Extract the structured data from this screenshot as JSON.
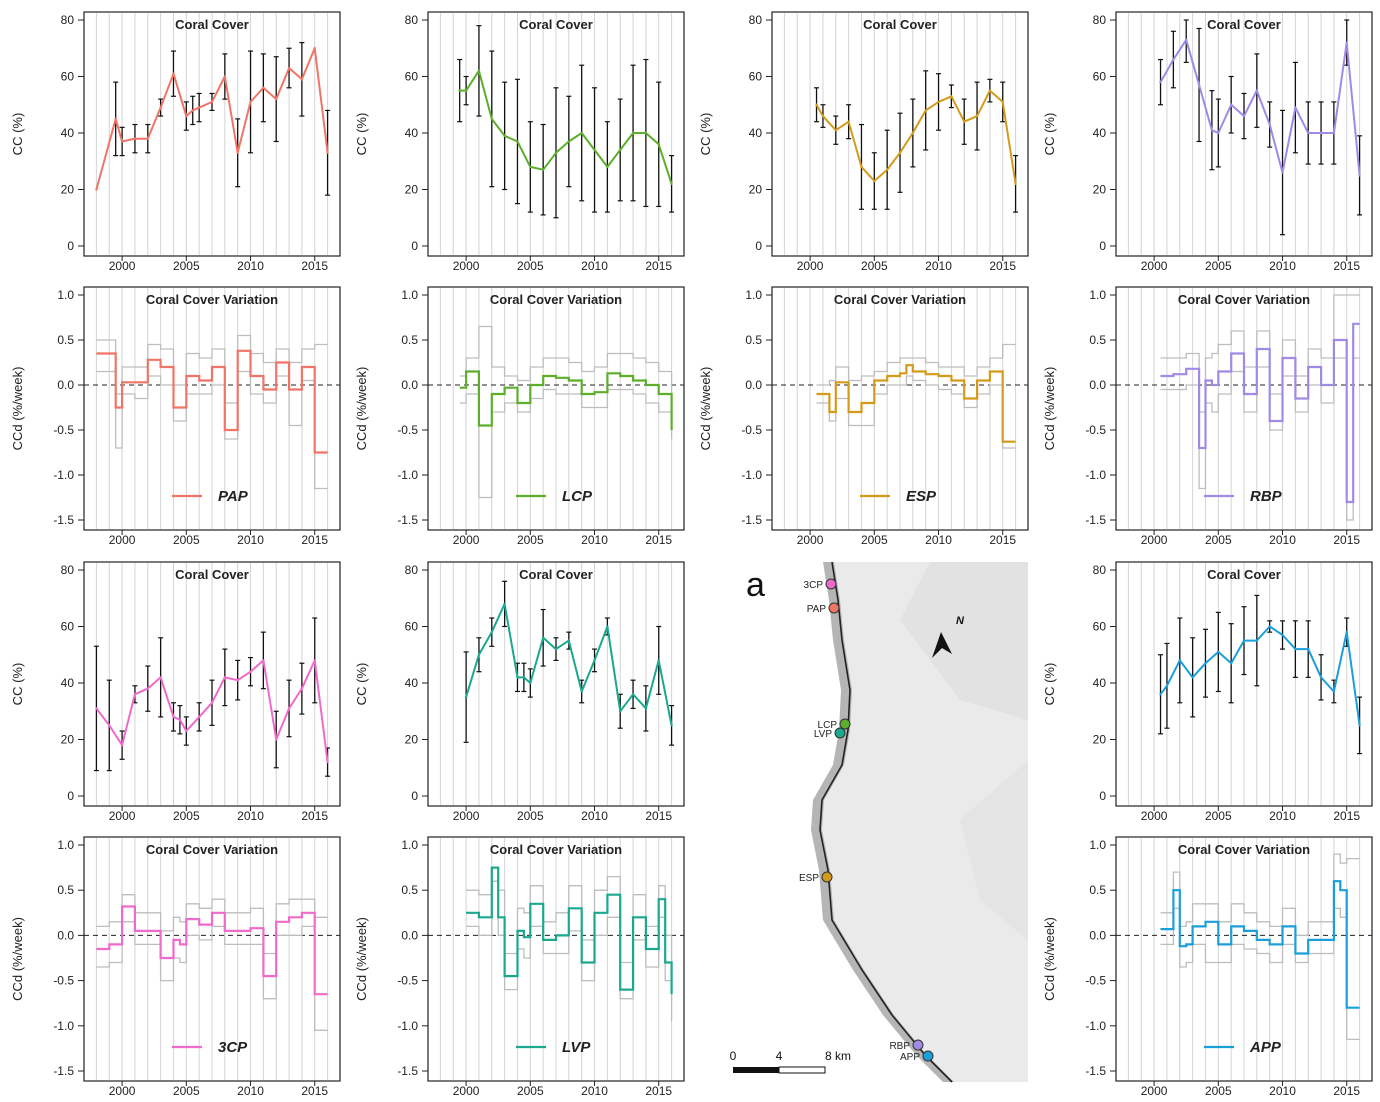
{
  "colors": {
    "PAP": "#F07566",
    "LCP": "#5DAE2B",
    "ESP": "#D49B1A",
    "RBP": "#A08AE6",
    "3CP": "#F06ACB",
    "LVP": "#1BA88E",
    "APP": "#1A9FDB",
    "grid": "#d4d4d4",
    "range": "#bdbdbd"
  },
  "labels": {
    "cover_title": "Coral Cover",
    "variation_title": "Coral Cover Variation",
    "cover_ylabel": "CC (%)",
    "variation_ylabel": "CCd (%/week)"
  },
  "map": {
    "panel_label": "a",
    "north": "N",
    "scale_labels": [
      "0",
      "4",
      "8 km"
    ],
    "sites": [
      "3CP",
      "PAP",
      "LCP",
      "LVP",
      "ESP",
      "RBP",
      "APP"
    ]
  },
  "chart_data": [
    {
      "type": "line",
      "site": "PAP",
      "title": "Coral Cover",
      "ylabel": "CC (%)",
      "xlim": [
        1997.5,
        2016.5
      ],
      "ylim": [
        0,
        80
      ],
      "xticks": [
        2000,
        2005,
        2010,
        2015
      ],
      "yticks": [
        0,
        20,
        40,
        60,
        80
      ],
      "x": [
        1998,
        1999.5,
        2000,
        2001,
        2002,
        2003,
        2004,
        2005,
        2005.5,
        2006,
        2007,
        2008,
        2009,
        2010,
        2011,
        2012,
        2013,
        2014,
        2015,
        2016
      ],
      "y": [
        20,
        45,
        37,
        38,
        38,
        49,
        61,
        46,
        48,
        49,
        51,
        60,
        33,
        51,
        56,
        52,
        63,
        59,
        70,
        33
      ],
      "err": [
        0,
        13,
        5,
        5,
        5,
        3,
        8,
        5,
        5,
        5,
        3,
        8,
        12,
        18,
        12,
        15,
        7,
        13,
        0,
        15
      ]
    },
    {
      "type": "line",
      "site": "LCP",
      "title": "Coral Cover",
      "ylabel": "CC (%)",
      "xlim": [
        1997.5,
        2016.5
      ],
      "ylim": [
        0,
        80
      ],
      "xticks": [
        2000,
        2005,
        2010,
        2015
      ],
      "yticks": [
        0,
        20,
        40,
        60,
        80
      ],
      "x": [
        1999.5,
        2000,
        2001,
        2002,
        2003,
        2004,
        2005,
        2006,
        2007,
        2008,
        2009,
        2010,
        2011,
        2012,
        2013,
        2014,
        2015,
        2016
      ],
      "y": [
        55,
        55,
        62,
        45,
        39,
        37,
        28,
        27,
        33,
        37,
        40,
        34,
        28,
        34,
        40,
        40,
        36,
        22
      ],
      "err": [
        11,
        5,
        16,
        24,
        19,
        22,
        16,
        16,
        23,
        16,
        24,
        22,
        16,
        18,
        24,
        26,
        22,
        10
      ]
    },
    {
      "type": "line",
      "site": "ESP",
      "title": "Coral Cover",
      "ylabel": "CC (%)",
      "xlim": [
        1997.5,
        2016.5
      ],
      "ylim": [
        0,
        80
      ],
      "xticks": [
        2000,
        2005,
        2010,
        2015
      ],
      "yticks": [
        0,
        20,
        40,
        60,
        80
      ],
      "x": [
        2000.5,
        2001,
        2002,
        2003,
        2004,
        2005,
        2006,
        2007,
        2008,
        2009,
        2010,
        2011,
        2012,
        2013,
        2014,
        2015,
        2016
      ],
      "y": [
        50,
        46,
        41,
        44,
        28,
        23,
        27,
        33,
        40,
        48,
        51,
        53,
        44,
        46,
        55,
        51,
        22
      ],
      "err": [
        6,
        4,
        5,
        6,
        15,
        10,
        14,
        14,
        12,
        14,
        10,
        4,
        8,
        12,
        4,
        7,
        10
      ]
    },
    {
      "type": "line",
      "site": "RBP",
      "title": "Coral Cover",
      "ylabel": "CC (%)",
      "xlim": [
        1997.5,
        2016.5
      ],
      "ylim": [
        0,
        80
      ],
      "xticks": [
        2000,
        2005,
        2010,
        2015
      ],
      "yticks": [
        0,
        20,
        40,
        60,
        80
      ],
      "x": [
        2000.5,
        2001.5,
        2002.5,
        2003.5,
        2004.5,
        2005,
        2006,
        2007,
        2008,
        2009,
        2010,
        2011,
        2012,
        2013,
        2014,
        2015,
        2016
      ],
      "y": [
        58,
        66,
        73,
        57,
        41,
        40,
        50,
        46,
        55,
        43,
        26,
        49,
        40,
        40,
        40,
        72,
        25
      ],
      "err": [
        8,
        10,
        8,
        20,
        14,
        12,
        10,
        8,
        13,
        8,
        22,
        16,
        11,
        11,
        11,
        8,
        14
      ]
    },
    {
      "type": "step",
      "site": "PAP",
      "title": "Coral Cover Variation",
      "ylabel": "CCd (%/week)",
      "legend": "PAP",
      "xlim": [
        1997.5,
        2016.5
      ],
      "ylim": [
        -1.5,
        1.0
      ],
      "xticks": [
        2000,
        2005,
        2010,
        2015
      ],
      "yticks": [
        -1.5,
        -1.0,
        -0.5,
        0.0,
        0.5,
        1.0
      ],
      "breaks": [
        1998,
        1999.5,
        2000,
        2001,
        2002,
        2003,
        2004,
        2005,
        2006,
        2007,
        2008,
        2009,
        2010,
        2011,
        2012,
        2013,
        2014,
        2015,
        2016
      ],
      "values": [
        0.35,
        -0.25,
        0.03,
        0.03,
        0.28,
        0.2,
        -0.25,
        0.1,
        0.05,
        0.2,
        -0.5,
        0.38,
        0.1,
        -0.05,
        0.25,
        -0.05,
        0.2,
        -0.75
      ],
      "upper": [
        0.5,
        -0.1,
        0.2,
        0.2,
        0.45,
        0.4,
        0.0,
        0.35,
        0.3,
        0.4,
        -0.2,
        0.55,
        0.35,
        0.25,
        0.4,
        0.25,
        0.4,
        0.45
      ],
      "lower": [
        0.15,
        -0.7,
        -0.1,
        -0.15,
        0.1,
        0.0,
        -0.4,
        -0.1,
        -0.1,
        0.0,
        -0.6,
        0.15,
        -0.1,
        -0.2,
        0.1,
        -0.45,
        0.05,
        -1.15
      ]
    },
    {
      "type": "step",
      "site": "LCP",
      "title": "Coral Cover Variation",
      "ylabel": "CCd (%/week)",
      "legend": "LCP",
      "xlim": [
        1997.5,
        2016.5
      ],
      "ylim": [
        -1.5,
        1.0
      ],
      "xticks": [
        2000,
        2005,
        2010,
        2015
      ],
      "yticks": [
        -1.5,
        -1.0,
        -0.5,
        0.0,
        0.5,
        1.0
      ],
      "breaks": [
        1999.5,
        2000,
        2001,
        2002,
        2003,
        2004,
        2005,
        2006,
        2007,
        2008,
        2009,
        2010,
        2011,
        2012,
        2013,
        2014,
        2015,
        2016
      ],
      "values": [
        -0.03,
        0.15,
        -0.45,
        -0.1,
        -0.03,
        -0.2,
        0.0,
        0.1,
        0.08,
        0.05,
        -0.1,
        -0.08,
        0.13,
        0.1,
        0.05,
        0.0,
        -0.1,
        -0.5
      ],
      "upper": [
        0.1,
        0.3,
        0.65,
        0.2,
        0.1,
        0.05,
        0.2,
        0.3,
        0.3,
        0.25,
        0.15,
        0.2,
        0.35,
        0.35,
        0.3,
        0.25,
        0.15,
        -0.2
      ],
      "lower": [
        -0.2,
        -0.1,
        -1.25,
        -0.3,
        -0.2,
        -0.3,
        -0.15,
        -0.05,
        -0.1,
        -0.1,
        -0.25,
        -0.25,
        -0.05,
        -0.05,
        -0.1,
        -0.2,
        -0.3,
        -0.6
      ]
    },
    {
      "type": "step",
      "site": "ESP",
      "title": "Coral Cover Variation",
      "ylabel": "CCd (%/week)",
      "legend": "ESP",
      "xlim": [
        1997.5,
        2016.5
      ],
      "ylim": [
        -1.5,
        1.0
      ],
      "xticks": [
        2000,
        2005,
        2010,
        2015
      ],
      "yticks": [
        -1.5,
        -1.0,
        -0.5,
        0.0,
        0.5,
        1.0
      ],
      "breaks": [
        2000.5,
        2001.5,
        2002,
        2003,
        2004,
        2005,
        2006,
        2007,
        2007.5,
        2008,
        2009,
        2010,
        2011,
        2012,
        2013,
        2014,
        2015,
        2016
      ],
      "values": [
        -0.1,
        -0.3,
        0.03,
        -0.3,
        -0.2,
        0.05,
        0.1,
        0.13,
        0.22,
        0.15,
        0.12,
        0.1,
        0.05,
        -0.15,
        0.05,
        0.15,
        -0.63
      ],
      "upper": [
        0.0,
        0.05,
        0.2,
        0.05,
        0.1,
        0.15,
        0.25,
        0.3,
        0.3,
        0.3,
        0.25,
        0.2,
        0.2,
        0.1,
        0.2,
        0.3,
        0.45
      ],
      "lower": [
        -0.2,
        -0.4,
        -0.15,
        -0.45,
        -0.45,
        -0.1,
        0.0,
        0.0,
        0.1,
        0.05,
        0.0,
        -0.05,
        -0.1,
        -0.25,
        -0.1,
        0.0,
        -0.7
      ]
    },
    {
      "type": "step",
      "site": "RBP",
      "title": "Coral Cover Variation",
      "ylabel": "CCd (%/week)",
      "legend": "RBP",
      "xlim": [
        1997.5,
        2016.5
      ],
      "ylim": [
        -1.5,
        1.0
      ],
      "xticks": [
        2000,
        2005,
        2010,
        2015
      ],
      "yticks": [
        -1.5,
        -1.0,
        -0.5,
        0.0,
        0.5,
        1.0
      ],
      "breaks": [
        2000.5,
        2001.5,
        2002.5,
        2003.5,
        2004,
        2004.5,
        2005,
        2006,
        2007,
        2008,
        2009,
        2010,
        2011,
        2012,
        2013,
        2014,
        2015,
        2015.5,
        2016
      ],
      "values": [
        0.1,
        0.12,
        0.18,
        -0.7,
        0.05,
        0.0,
        0.15,
        0.35,
        -0.1,
        0.4,
        -0.4,
        0.3,
        -0.15,
        0.2,
        0.0,
        0.5,
        -1.3,
        0.68
      ],
      "upper": [
        0.3,
        0.3,
        0.35,
        -0.3,
        0.3,
        0.35,
        0.45,
        0.6,
        0.2,
        0.6,
        -0.1,
        0.5,
        0.1,
        0.4,
        0.3,
        1.0,
        1.0,
        1.0
      ],
      "lower": [
        -0.05,
        -0.05,
        0.0,
        -1.15,
        -0.2,
        -0.3,
        -0.1,
        0.15,
        -0.3,
        0.2,
        -0.5,
        0.1,
        -0.3,
        0.0,
        -0.2,
        0.3,
        -1.5,
        0.3
      ]
    },
    {
      "type": "line",
      "site": "3CP",
      "title": "Coral Cover",
      "ylabel": "CC (%)",
      "xlim": [
        1997.5,
        2016.5
      ],
      "ylim": [
        0,
        80
      ],
      "xticks": [
        2000,
        2005,
        2010,
        2015
      ],
      "yticks": [
        0,
        20,
        40,
        60,
        80
      ],
      "x": [
        1998,
        1999,
        2000,
        2001,
        2002,
        2003,
        2004,
        2004.5,
        2005,
        2006,
        2007,
        2008,
        2009,
        2010,
        2011,
        2012,
        2013,
        2014,
        2015,
        2016
      ],
      "y": [
        31,
        25,
        18,
        36,
        38,
        42,
        28,
        27,
        23,
        28,
        33,
        42,
        41,
        44,
        48,
        20,
        31,
        38,
        48,
        12
      ],
      "err": [
        22,
        16,
        5,
        3,
        8,
        14,
        5,
        5,
        5,
        5,
        8,
        10,
        7,
        5,
        10,
        10,
        10,
        9,
        15,
        5
      ]
    },
    {
      "type": "line",
      "site": "LVP",
      "title": "Coral Cover",
      "ylabel": "CC (%)",
      "xlim": [
        1997.5,
        2016.5
      ],
      "ylim": [
        0,
        80
      ],
      "xticks": [
        2000,
        2005,
        2010,
        2015
      ],
      "yticks": [
        0,
        20,
        40,
        60,
        80
      ],
      "x": [
        2000,
        2001,
        2002,
        2003,
        2004,
        2004.5,
        2005,
        2006,
        2007,
        2008,
        2009,
        2010,
        2011,
        2012,
        2013,
        2014,
        2015,
        2016
      ],
      "y": [
        35,
        50,
        58,
        68,
        42,
        42,
        40,
        56,
        52,
        55,
        37,
        48,
        60,
        30,
        36,
        31,
        48,
        25
      ],
      "err": [
        16,
        6,
        5,
        8,
        5,
        5,
        5,
        10,
        4,
        3,
        4,
        4,
        3,
        6,
        5,
        8,
        12,
        7
      ]
    },
    {
      "type": "line",
      "site": "APP",
      "title": "Coral Cover",
      "ylabel": "CC (%)",
      "xlim": [
        1997.5,
        2016.5
      ],
      "ylim": [
        0,
        80
      ],
      "xticks": [
        2000,
        2005,
        2010,
        2015
      ],
      "yticks": [
        0,
        20,
        40,
        60,
        80
      ],
      "x": [
        2000.5,
        2001,
        2002,
        2003,
        2004,
        2005,
        2006,
        2007,
        2008,
        2009,
        2010,
        2011,
        2012,
        2013,
        2014,
        2015,
        2016
      ],
      "y": [
        36,
        39,
        48,
        42,
        47,
        51,
        47,
        55,
        55,
        60,
        57,
        52,
        52,
        42,
        37,
        58,
        25
      ],
      "err": [
        14,
        15,
        15,
        14,
        12,
        14,
        14,
        12,
        16,
        2,
        5,
        10,
        10,
        8,
        4,
        5,
        10
      ]
    },
    {
      "type": "step",
      "site": "3CP",
      "title": "Coral Cover Variation",
      "ylabel": "CCd (%/week)",
      "legend": "3CP",
      "xlim": [
        1997.5,
        2016.5
      ],
      "ylim": [
        -1.5,
        1.0
      ],
      "xticks": [
        2000,
        2005,
        2010,
        2015
      ],
      "yticks": [
        -1.5,
        -1.0,
        -0.5,
        0.0,
        0.5,
        1.0
      ],
      "breaks": [
        1998,
        1999,
        2000,
        2001,
        2002,
        2003,
        2004,
        2004.5,
        2005,
        2006,
        2007,
        2008,
        2009,
        2010,
        2011,
        2012,
        2013,
        2014,
        2015,
        2016
      ],
      "values": [
        -0.15,
        -0.1,
        0.32,
        0.05,
        0.05,
        -0.25,
        -0.05,
        -0.1,
        0.18,
        0.12,
        0.25,
        0.05,
        0.05,
        0.08,
        -0.45,
        0.15,
        0.2,
        0.25,
        -0.65
      ],
      "upper": [
        0.1,
        0.15,
        0.45,
        0.25,
        0.25,
        0.05,
        0.2,
        0.15,
        0.35,
        0.3,
        0.4,
        0.25,
        0.25,
        0.3,
        -0.2,
        0.35,
        0.4,
        0.4,
        0.2
      ],
      "lower": [
        -0.35,
        -0.3,
        0.15,
        -0.1,
        -0.1,
        -0.5,
        -0.25,
        -0.3,
        0.0,
        -0.05,
        0.1,
        -0.1,
        -0.1,
        -0.1,
        -0.7,
        0.0,
        0.0,
        0.1,
        -1.05
      ]
    },
    {
      "type": "step",
      "site": "LVP",
      "title": "Coral Cover Variation",
      "ylabel": "CCd (%/week)",
      "legend": "LVP",
      "xlim": [
        1997.5,
        2016.5
      ],
      "ylim": [
        -1.5,
        1.0
      ],
      "xticks": [
        2000,
        2005,
        2010,
        2015
      ],
      "yticks": [
        -1.5,
        -1.0,
        -0.5,
        0.0,
        0.5,
        1.0
      ],
      "breaks": [
        2000,
        2001,
        2002,
        2002.5,
        2003,
        2004,
        2004.5,
        2005,
        2006,
        2007,
        2008,
        2009,
        2010,
        2011,
        2012,
        2013,
        2014,
        2015,
        2015.5,
        2016
      ],
      "values": [
        0.25,
        0.2,
        0.75,
        0.2,
        -0.45,
        0.05,
        -0.02,
        0.35,
        -0.05,
        0.0,
        0.3,
        -0.3,
        0.25,
        0.45,
        -0.6,
        0.2,
        -0.15,
        0.4,
        -0.3,
        -0.65
      ],
      "upper": [
        0.5,
        0.45,
        0.75,
        0.5,
        -0.2,
        0.3,
        0.25,
        0.55,
        0.15,
        0.25,
        0.55,
        -0.05,
        0.5,
        0.65,
        -0.3,
        0.45,
        0.1,
        0.55,
        0.0,
        -0.35
      ],
      "lower": [
        0.1,
        0.0,
        0.6,
        0.0,
        -0.6,
        -0.15,
        -0.25,
        0.1,
        -0.2,
        -0.2,
        0.05,
        -0.5,
        0.0,
        0.2,
        -0.7,
        -0.05,
        -0.35,
        0.2,
        -0.5,
        -0.95
      ]
    },
    {
      "type": "step",
      "site": "APP",
      "title": "Coral Cover Variation",
      "ylabel": "CCd (%/week)",
      "legend": "APP",
      "xlim": [
        1997.5,
        2016.5
      ],
      "ylim": [
        -1.5,
        1.0
      ],
      "xticks": [
        2000,
        2005,
        2010,
        2015
      ],
      "yticks": [
        -1.5,
        -1.0,
        -0.5,
        0.0,
        0.5,
        1.0
      ],
      "breaks": [
        2000.5,
        2001.5,
        2002,
        2002.5,
        2003,
        2004,
        2005,
        2006,
        2007,
        2008,
        2009,
        2010,
        2011,
        2012,
        2013,
        2014,
        2014.5,
        2015,
        2016
      ],
      "values": [
        0.07,
        0.5,
        -0.12,
        -0.1,
        0.1,
        0.15,
        -0.1,
        0.1,
        0.05,
        -0.05,
        -0.1,
        0.1,
        -0.2,
        -0.05,
        -0.05,
        0.6,
        0.5,
        -0.8
      ],
      "upper": [
        0.25,
        0.7,
        0.1,
        0.15,
        0.35,
        0.35,
        0.15,
        0.35,
        0.25,
        0.15,
        0.1,
        0.3,
        0.0,
        0.15,
        0.15,
        0.9,
        0.8,
        0.85
      ],
      "lower": [
        -0.1,
        0.3,
        -0.35,
        -0.3,
        -0.1,
        -0.3,
        -0.3,
        -0.1,
        -0.15,
        -0.2,
        -0.3,
        -0.1,
        -0.3,
        -0.2,
        -0.2,
        0.3,
        0.2,
        -1.15
      ]
    }
  ]
}
